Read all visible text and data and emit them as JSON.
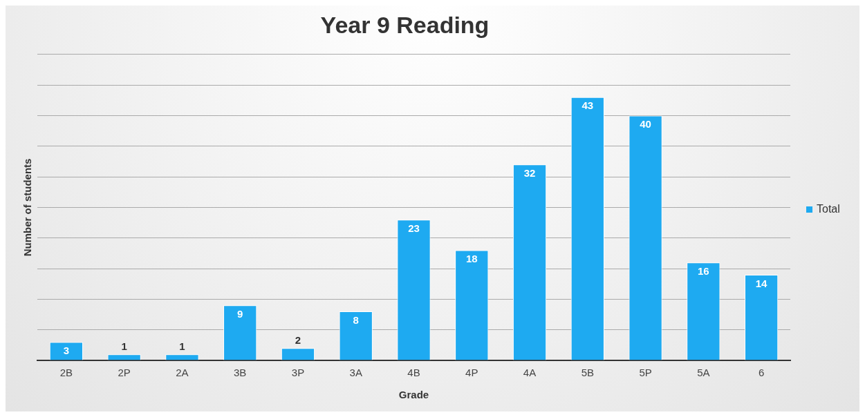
{
  "chart_data": {
    "type": "bar",
    "title": "Year 9 Reading",
    "xlabel": "Grade",
    "ylabel": "Number of students",
    "categories": [
      "2B",
      "2P",
      "2A",
      "3B",
      "3P",
      "3A",
      "4B",
      "4P",
      "4A",
      "5B",
      "5P",
      "5A",
      "6"
    ],
    "series": [
      {
        "name": "Total",
        "color": "#1eaaf1",
        "values": [
          3,
          1,
          1,
          9,
          2,
          8,
          23,
          18,
          32,
          43,
          40,
          16,
          14
        ]
      }
    ],
    "ylim": [
      0,
      50
    ],
    "tick_labels": "x",
    "grid": "y",
    "legend": "right",
    "data_labels": true
  }
}
